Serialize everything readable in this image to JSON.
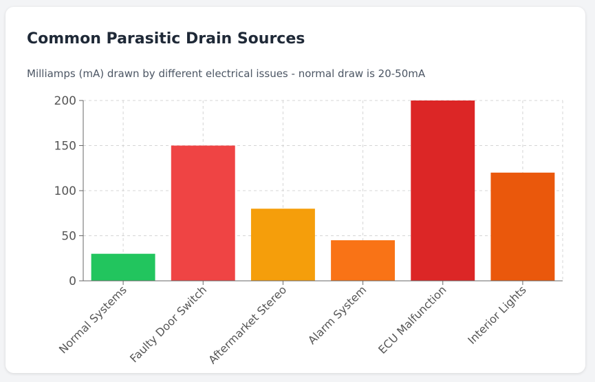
{
  "chart_data": {
    "type": "bar",
    "title": "Common Parasitic Drain Sources",
    "subtitle": "Milliamps (mA) drawn by different electrical issues - normal draw is 20-50mA",
    "xlabel": "",
    "ylabel": "",
    "ylim": [
      0,
      200
    ],
    "yticks": [
      0,
      50,
      100,
      150,
      200
    ],
    "grid": true,
    "categories": [
      "Normal Systems",
      "Faulty Door Switch",
      "Aftermarket Stereo",
      "Alarm System",
      "ECU Malfunction",
      "Interior Lights"
    ],
    "values": [
      30,
      150,
      80,
      45,
      200,
      120
    ],
    "colors": [
      "#22c55e",
      "#ef4444",
      "#f59e0b",
      "#f97316",
      "#dc2626",
      "#ea580c"
    ]
  }
}
